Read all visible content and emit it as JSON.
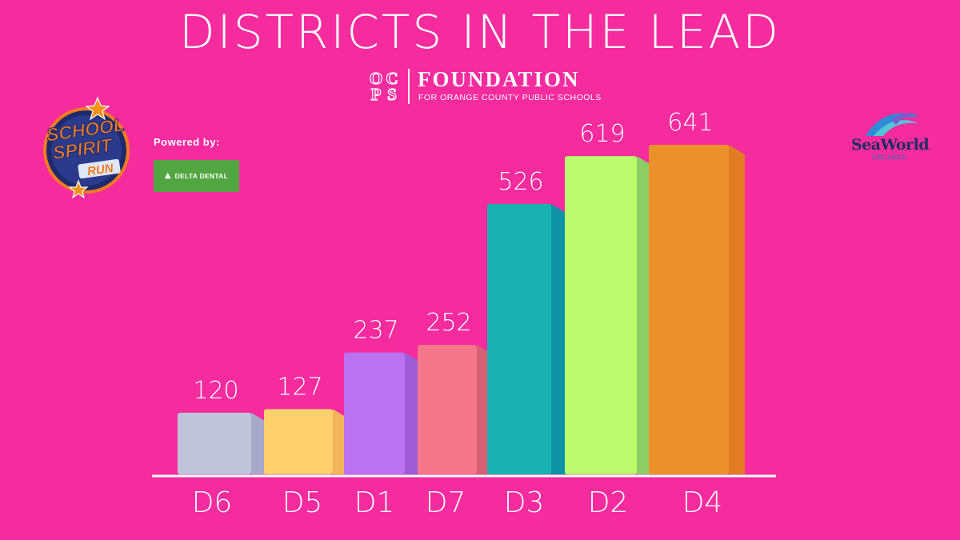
{
  "header": {
    "title": "DISTRICTS IN THE LEAD"
  },
  "sponsors": {
    "ocps": {
      "grid_letters": [
        "O",
        "C",
        "P",
        "S"
      ],
      "name": "FOUNDATION",
      "subtitle": "FOR ORANGE COUNTY PUBLIC SCHOOLS"
    },
    "school_spirit_run": {
      "line1": "SCHOOL",
      "line2": "SPIRIT",
      "line3": "RUN"
    },
    "powered_by": "Powered by:",
    "delta_dental": "DELTA DENTAL",
    "seaworld": {
      "name": "SeaWorld",
      "subtitle": "ORLANDO"
    }
  },
  "colors": {
    "background": "#f52b9e",
    "text": "#ffffff",
    "delta_green": "#52a641"
  },
  "chart_data": {
    "type": "bar",
    "title": "DISTRICTS IN THE LEAD",
    "categories": [
      "D6",
      "D5",
      "D1",
      "D7",
      "D3",
      "D2",
      "D4"
    ],
    "values": [
      120,
      127,
      237,
      252,
      526,
      619,
      641
    ],
    "value_labels": [
      "120",
      "127",
      "237",
      "252",
      "526",
      "619",
      "641"
    ],
    "bar_colors": [
      "#c0c3d9",
      "#fdd06d",
      "#ba71f2",
      "#f4768a",
      "#1ab2b1",
      "#bcfb6d",
      "#eb912c"
    ],
    "bar_side_colors": [
      "#a8a9c9",
      "#f2b55a",
      "#9f5cd6",
      "#d66174",
      "#0e93a6",
      "#8ccd66",
      "#e27b24"
    ],
    "xlabel": "",
    "ylabel": "",
    "grid": false,
    "legend": "none"
  }
}
